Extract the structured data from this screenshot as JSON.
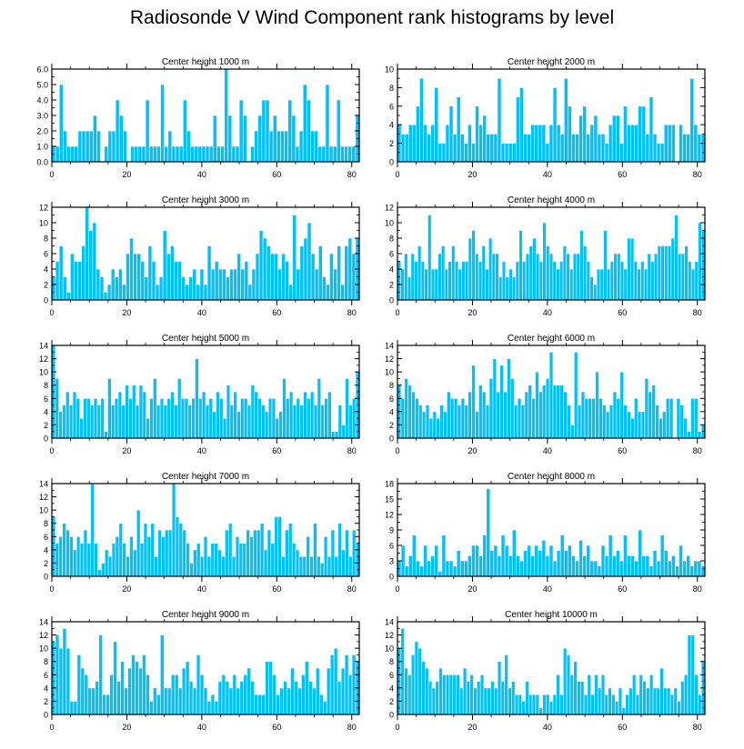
{
  "title": "Radiosonde V Wind Component rank histograms by level",
  "colors": {
    "bar": "#00c0ff",
    "bar_edge": "#ffffff",
    "axis": "#000000"
  },
  "chart_data": [
    {
      "type": "bar",
      "title": "Center height 1000 m",
      "xlim": [
        0,
        82
      ],
      "ylim": [
        0,
        6
      ],
      "yticks": [
        0,
        1,
        2,
        3,
        4,
        5,
        6
      ],
      "ytick_labels": [
        "0.0",
        "1.0",
        "2.0",
        "3.0",
        "4.0",
        "5.0",
        "6.0"
      ],
      "xticks": [
        0,
        20,
        40,
        60,
        80
      ],
      "values": [
        1,
        1,
        5,
        2,
        1,
        1,
        1,
        2,
        2,
        2,
        2,
        3,
        2,
        0,
        1,
        2,
        2,
        4,
        3,
        2,
        0,
        1,
        1,
        1,
        1,
        4,
        1,
        1,
        1,
        5,
        1,
        2,
        1,
        1,
        1,
        4,
        2,
        1,
        1,
        1,
        1,
        1,
        1,
        3,
        1,
        1,
        6,
        3,
        1,
        1,
        4,
        3,
        0,
        1,
        2,
        3,
        4,
        4,
        2,
        3,
        2,
        2,
        2,
        4,
        3,
        1,
        2,
        5,
        4,
        2,
        2,
        1,
        1,
        5,
        1,
        1,
        4,
        1,
        1,
        1,
        1,
        3
      ]
    },
    {
      "type": "bar",
      "title": "Center height 2000 m",
      "xlim": [
        0,
        82
      ],
      "ylim": [
        0,
        10
      ],
      "yticks": [
        0,
        2,
        4,
        6,
        8,
        10
      ],
      "ytick_labels": [
        "0",
        "2",
        "4",
        "6",
        "8",
        "10"
      ],
      "xticks": [
        0,
        20,
        40,
        60,
        80
      ],
      "values": [
        4,
        3,
        3,
        4,
        4,
        6,
        9,
        4,
        3,
        4,
        8,
        2,
        2,
        4,
        6,
        3,
        7,
        3,
        2,
        4,
        2,
        6,
        4,
        5,
        3,
        3,
        3,
        9,
        2,
        2,
        2,
        2,
        7,
        8,
        3,
        3,
        4,
        4,
        4,
        4,
        2,
        4,
        8,
        4,
        3,
        9,
        6,
        3,
        3,
        5,
        6,
        3,
        4,
        5,
        3,
        3,
        2,
        4,
        5,
        5,
        2,
        6,
        4,
        4,
        4,
        6,
        6,
        3,
        7,
        3,
        2,
        2,
        4,
        4,
        4,
        0,
        4,
        3,
        3,
        9,
        4,
        3,
        3
      ]
    },
    {
      "type": "bar",
      "title": "Center height 3000 m",
      "xlim": [
        0,
        82
      ],
      "ylim": [
        0,
        12
      ],
      "yticks": [
        0,
        2,
        4,
        6,
        8,
        10,
        12
      ],
      "ytick_labels": [
        "0",
        "2",
        "4",
        "6",
        "8",
        "10",
        "12"
      ],
      "xticks": [
        0,
        20,
        40,
        60,
        80
      ],
      "values": [
        3,
        5,
        7,
        3,
        1,
        6,
        5,
        5,
        7,
        12,
        9,
        10,
        4,
        3,
        1,
        2,
        4,
        3,
        4,
        2,
        6,
        8,
        6,
        6,
        5,
        3,
        7,
        5,
        2,
        3,
        9,
        6,
        7,
        5,
        5,
        3,
        2,
        3,
        4,
        2,
        4,
        2,
        7,
        4,
        5,
        4,
        4,
        3,
        4,
        4,
        6,
        4,
        5,
        2,
        4,
        6,
        9,
        8,
        7,
        6,
        6,
        4,
        6,
        5,
        2,
        11,
        4,
        7,
        8,
        10,
        6,
        4,
        7,
        3,
        2,
        6,
        4,
        7,
        2,
        7,
        8,
        6,
        8
      ]
    },
    {
      "type": "bar",
      "title": "Center height 4000 m",
      "xlim": [
        0,
        82
      ],
      "ylim": [
        0,
        12
      ],
      "yticks": [
        0,
        2,
        4,
        6,
        8,
        10,
        12
      ],
      "ytick_labels": [
        "0",
        "2",
        "4",
        "6",
        "8",
        "10",
        "12"
      ],
      "xticks": [
        0,
        20,
        40,
        60,
        80
      ],
      "values": [
        5,
        4,
        6,
        3,
        6,
        5,
        7,
        5,
        4,
        11,
        4,
        4,
        6,
        7,
        4,
        5,
        7,
        5,
        4,
        5,
        5,
        8,
        9,
        6,
        5,
        7,
        4,
        8,
        6,
        6,
        3,
        5,
        3,
        4,
        3,
        5,
        9,
        5,
        6,
        7,
        8,
        6,
        5,
        10,
        7,
        6,
        5,
        4,
        5,
        7,
        6,
        4,
        6,
        6,
        9,
        7,
        5,
        3,
        2,
        4,
        4,
        9,
        4,
        5,
        6,
        6,
        5,
        4,
        8,
        8,
        5,
        4,
        5,
        4,
        6,
        5,
        6,
        7,
        7,
        7,
        7,
        8,
        11,
        6,
        6,
        7,
        5,
        4,
        5,
        10,
        9
      ]
    },
    {
      "type": "bar",
      "title": "Center height 5000 m",
      "xlim": [
        0,
        82
      ],
      "ylim": [
        0,
        14
      ],
      "yticks": [
        0,
        2,
        4,
        6,
        8,
        10,
        12,
        14
      ],
      "ytick_labels": [
        "0",
        "2",
        "4",
        "6",
        "8",
        "10",
        "12",
        "14"
      ],
      "xticks": [
        0,
        20,
        40,
        60,
        80
      ],
      "values": [
        14,
        9,
        4,
        5,
        7,
        5,
        7,
        6,
        3,
        6,
        6,
        5,
        6,
        5,
        6,
        1,
        9,
        5,
        6,
        7,
        5,
        8,
        6,
        8,
        5,
        8,
        7,
        3,
        6,
        9,
        5,
        6,
        5,
        6,
        7,
        5,
        9,
        6,
        6,
        5,
        6,
        12,
        6,
        7,
        5,
        6,
        4,
        7,
        6,
        3,
        8,
        5,
        7,
        4,
        6,
        6,
        5,
        8,
        7,
        6,
        5,
        4,
        6,
        6,
        3,
        4,
        9,
        6,
        7,
        5,
        6,
        5,
        7,
        6,
        7,
        5,
        9,
        5,
        6,
        7,
        1,
        1,
        5,
        2,
        9,
        5,
        6,
        10
      ]
    },
    {
      "type": "bar",
      "title": "Center height 6000 m",
      "xlim": [
        0,
        82
      ],
      "ylim": [
        0,
        14
      ],
      "yticks": [
        0,
        2,
        4,
        6,
        8,
        10,
        12,
        14
      ],
      "ytick_labels": [
        "0",
        "2",
        "4",
        "6",
        "8",
        "10",
        "12",
        "14"
      ],
      "xticks": [
        0,
        20,
        40,
        60,
        80
      ],
      "values": [
        8,
        6,
        9,
        8,
        7,
        6,
        5,
        4,
        5,
        3,
        4,
        3,
        5,
        4,
        7,
        6,
        6,
        5,
        6,
        5,
        7,
        11,
        4,
        8,
        7,
        5,
        9,
        12,
        7,
        11,
        7,
        12,
        9,
        5,
        6,
        5,
        7,
        8,
        6,
        10,
        7,
        8,
        9,
        13,
        8,
        8,
        8,
        7,
        5,
        2,
        13,
        5,
        7,
        6,
        6,
        6,
        10,
        6,
        5,
        4,
        5,
        7,
        6,
        10,
        5,
        4,
        3,
        6,
        4,
        4,
        9,
        7,
        8,
        5,
        3,
        4,
        6,
        6,
        0,
        6,
        5,
        3,
        1,
        6,
        6,
        1,
        2
      ]
    },
    {
      "type": "bar",
      "title": "Center height 7000 m",
      "xlim": [
        0,
        82
      ],
      "ylim": [
        0,
        14
      ],
      "yticks": [
        0,
        2,
        4,
        6,
        8,
        10,
        12,
        14
      ],
      "ytick_labels": [
        "0",
        "2",
        "4",
        "6",
        "8",
        "10",
        "12",
        "14"
      ],
      "xticks": [
        0,
        20,
        40,
        60,
        80
      ],
      "values": [
        9,
        5,
        6,
        8,
        7,
        6,
        4,
        6,
        5,
        7,
        5,
        14,
        5,
        1,
        2,
        4,
        3,
        5,
        6,
        8,
        5,
        3,
        6,
        4,
        10,
        5,
        8,
        6,
        8,
        3,
        7,
        6,
        7,
        7,
        14,
        9,
        8,
        7,
        5,
        2,
        4,
        5,
        3,
        6,
        3,
        5,
        5,
        4,
        3,
        7,
        8,
        3,
        6,
        5,
        5,
        7,
        6,
        7,
        7,
        8,
        4,
        7,
        5,
        9,
        9,
        3,
        7,
        8,
        5,
        4,
        3,
        3,
        6,
        3,
        8,
        3,
        2,
        6,
        3,
        7,
        3,
        8,
        4,
        7,
        3,
        7,
        5
      ]
    },
    {
      "type": "bar",
      "title": "Center height 8000 m",
      "xlim": [
        0,
        82
      ],
      "ylim": [
        0,
        18
      ],
      "yticks": [
        0,
        3,
        6,
        9,
        12,
        15,
        18
      ],
      "ytick_labels": [
        "0",
        "3",
        "6",
        "9",
        "12",
        "15",
        "18"
      ],
      "xticks": [
        0,
        20,
        40,
        60,
        80
      ],
      "values": [
        3,
        6,
        2,
        4,
        8,
        3,
        2,
        6,
        3,
        4,
        6,
        1,
        8,
        3,
        3,
        2,
        5,
        3,
        3,
        4,
        6,
        6,
        4,
        8,
        17,
        5,
        6,
        4,
        8,
        6,
        4,
        9,
        4,
        3,
        5,
        6,
        4,
        6,
        5,
        7,
        4,
        6,
        3,
        5,
        8,
        5,
        6,
        4,
        3,
        7,
        4,
        6,
        3,
        3,
        2,
        6,
        4,
        8,
        4,
        5,
        3,
        8,
        4,
        4,
        3,
        9,
        4,
        4,
        2,
        5,
        3,
        8,
        5,
        3,
        4,
        2,
        6,
        3,
        4,
        2,
        3,
        3,
        2
      ]
    },
    {
      "type": "bar",
      "title": "Center height 9000 m",
      "xlim": [
        0,
        82
      ],
      "ylim": [
        0,
        14
      ],
      "yticks": [
        0,
        2,
        4,
        6,
        8,
        10,
        12,
        14
      ],
      "ytick_labels": [
        "0",
        "2",
        "4",
        "6",
        "8",
        "10",
        "12",
        "14"
      ],
      "xticks": [
        0,
        20,
        40,
        60,
        80
      ],
      "values": [
        11,
        12,
        10,
        13,
        10,
        2,
        2,
        9,
        7,
        6,
        4,
        4,
        5,
        12,
        3,
        3,
        6,
        11,
        5,
        8,
        4,
        7,
        9,
        8,
        7,
        9,
        6,
        2,
        4,
        3,
        12,
        4,
        4,
        6,
        6,
        4,
        7,
        8,
        5,
        4,
        9,
        6,
        4,
        2,
        3,
        2,
        5,
        6,
        5,
        4,
        6,
        4,
        5,
        6,
        7,
        5,
        3,
        3,
        3,
        8,
        8,
        6,
        3,
        4,
        5,
        4,
        7,
        5,
        4,
        6,
        8,
        5,
        4,
        7,
        3,
        2,
        7,
        9,
        10,
        5,
        7,
        9,
        6,
        9,
        8
      ]
    },
    {
      "type": "bar",
      "title": "Center height 10000 m",
      "xlim": [
        0,
        82
      ],
      "ylim": [
        0,
        14
      ],
      "yticks": [
        0,
        2,
        4,
        6,
        8,
        10,
        12,
        14
      ],
      "ytick_labels": [
        "0",
        "2",
        "4",
        "6",
        "8",
        "10",
        "12",
        "14"
      ],
      "xticks": [
        0,
        20,
        40,
        60,
        80
      ],
      "values": [
        10,
        13,
        7,
        6,
        9,
        11,
        10,
        8,
        7,
        5,
        4,
        5,
        7,
        6,
        6,
        6,
        6,
        6,
        4,
        7,
        5,
        6,
        4,
        5,
        6,
        4,
        4,
        5,
        4,
        8,
        5,
        9,
        4,
        5,
        3,
        3,
        2,
        5,
        3,
        3,
        3,
        1,
        3,
        3,
        2,
        3,
        6,
        3,
        10,
        9,
        6,
        8,
        5,
        5,
        3,
        6,
        3,
        6,
        4,
        6,
        3,
        4,
        3,
        2,
        4,
        1,
        3,
        4,
        6,
        3,
        6,
        5,
        4,
        6,
        4,
        4,
        7,
        4,
        4,
        3,
        4,
        2,
        5,
        6,
        12,
        12,
        6,
        3,
        8
      ]
    }
  ]
}
